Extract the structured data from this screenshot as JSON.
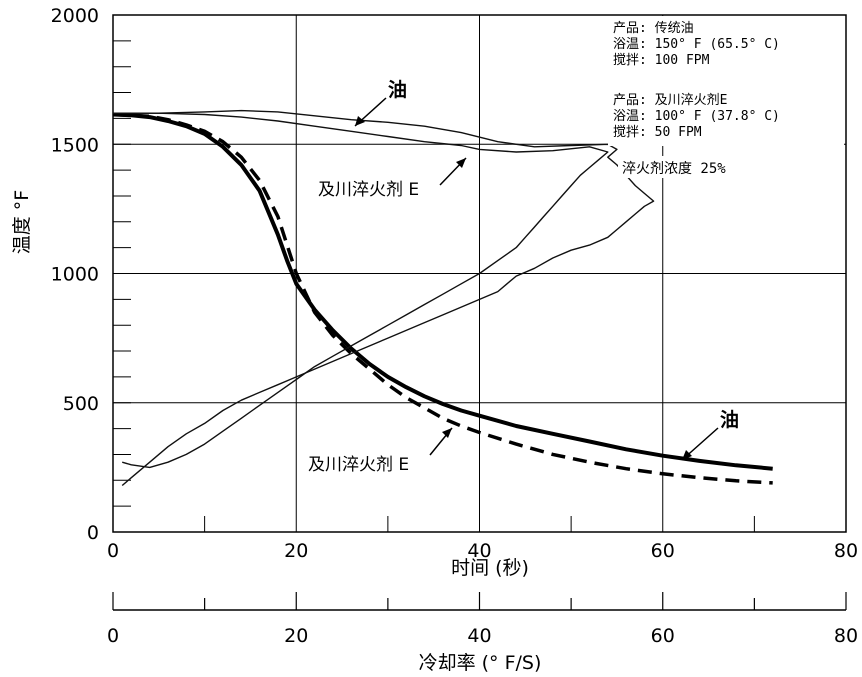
{
  "chart_data": {
    "type": "line",
    "xlabel": "时间 (秒)",
    "ylabel": "温度 °F",
    "xlim": [
      0,
      80
    ],
    "ylim": [
      0,
      2000
    ],
    "x_ticks": [
      "0",
      "20",
      "40",
      "60",
      "80"
    ],
    "y_ticks": [
      "0",
      "500",
      "1000",
      "1500",
      "2000"
    ],
    "grid": true,
    "secondary_axis": {
      "label": "冷却率 (° F/S)",
      "ticks": [
        "0",
        "20",
        "40",
        "60",
        "80"
      ]
    },
    "info_lines": [
      "产品: 传统油",
      "浴温: 150° F (65.5° C)",
      "搅拌: 100 FPM",
      "产品: 及川淬火剂E",
      "浴温: 100° F (37.8° C)",
      "搅拌: 50 FPM"
    ],
    "concentration_label": "淬火剂浓度  25%",
    "annotations": {
      "oil_top": "油",
      "agent_top": "及川淬火剂 E",
      "oil_bottom": "油",
      "agent_bottom": "及川淬火剂 E"
    },
    "series": [
      {
        "key": "oil-time",
        "style": "thick-solid",
        "points": [
          [
            0,
            1615
          ],
          [
            2,
            1612
          ],
          [
            4,
            1605
          ],
          [
            6,
            1590
          ],
          [
            8,
            1570
          ],
          [
            10,
            1540
          ],
          [
            12,
            1490
          ],
          [
            14,
            1420
          ],
          [
            16,
            1320
          ],
          [
            18,
            1150
          ],
          [
            19,
            1050
          ],
          [
            20,
            960
          ],
          [
            22,
            860
          ],
          [
            24,
            780
          ],
          [
            26,
            710
          ],
          [
            28,
            650
          ],
          [
            30,
            600
          ],
          [
            32,
            560
          ],
          [
            34,
            525
          ],
          [
            36,
            495
          ],
          [
            38,
            470
          ],
          [
            40,
            450
          ],
          [
            44,
            410
          ],
          [
            48,
            380
          ],
          [
            52,
            350
          ],
          [
            56,
            320
          ],
          [
            60,
            295
          ],
          [
            64,
            275
          ],
          [
            68,
            258
          ],
          [
            72,
            245
          ]
        ]
      },
      {
        "key": "agent-time",
        "style": "thick-dashed",
        "points": [
          [
            0,
            1615
          ],
          [
            2,
            1612
          ],
          [
            4,
            1608
          ],
          [
            6,
            1595
          ],
          [
            8,
            1575
          ],
          [
            10,
            1550
          ],
          [
            12,
            1510
          ],
          [
            14,
            1450
          ],
          [
            16,
            1360
          ],
          [
            18,
            1220
          ],
          [
            20,
            1000
          ],
          [
            22,
            850
          ],
          [
            24,
            760
          ],
          [
            26,
            690
          ],
          [
            28,
            630
          ],
          [
            30,
            570
          ],
          [
            32,
            520
          ],
          [
            34,
            480
          ],
          [
            36,
            440
          ],
          [
            38,
            410
          ],
          [
            40,
            385
          ],
          [
            44,
            340
          ],
          [
            48,
            300
          ],
          [
            52,
            270
          ],
          [
            56,
            245
          ],
          [
            60,
            225
          ],
          [
            64,
            210
          ],
          [
            68,
            198
          ],
          [
            72,
            190
          ]
        ]
      },
      {
        "key": "oil-rate",
        "style": "thin",
        "points": [
          [
            0,
            1620
          ],
          [
            5,
            1620
          ],
          [
            10,
            1625
          ],
          [
            14,
            1630
          ],
          [
            18,
            1625
          ],
          [
            22,
            1610
          ],
          [
            26,
            1595
          ],
          [
            30,
            1585
          ],
          [
            34,
            1570
          ],
          [
            38,
            1545
          ],
          [
            42,
            1510
          ],
          [
            46,
            1490
          ],
          [
            50,
            1495
          ],
          [
            54,
            1500
          ],
          [
            55,
            1480
          ],
          [
            54,
            1450
          ],
          [
            55,
            1420
          ],
          [
            56,
            1380
          ],
          [
            57,
            1340
          ],
          [
            58,
            1310
          ],
          [
            59,
            1280
          ],
          [
            58,
            1260
          ],
          [
            57,
            1230
          ],
          [
            56,
            1200
          ],
          [
            55,
            1170
          ],
          [
            54,
            1140
          ],
          [
            52,
            1110
          ],
          [
            50,
            1090
          ],
          [
            48,
            1060
          ],
          [
            46,
            1020
          ],
          [
            44,
            990
          ],
          [
            43,
            960
          ],
          [
            42,
            930
          ],
          [
            40,
            900
          ],
          [
            38,
            870
          ],
          [
            36,
            840
          ],
          [
            34,
            810
          ],
          [
            32,
            780
          ],
          [
            30,
            750
          ],
          [
            28,
            720
          ],
          [
            26,
            690
          ],
          [
            24,
            660
          ],
          [
            22,
            630
          ],
          [
            20,
            600
          ],
          [
            18,
            570
          ],
          [
            16,
            540
          ],
          [
            14,
            510
          ],
          [
            12,
            470
          ],
          [
            10,
            420
          ],
          [
            8,
            380
          ],
          [
            6,
            330
          ],
          [
            4,
            270
          ],
          [
            2,
            210
          ],
          [
            1,
            180
          ]
        ]
      },
      {
        "key": "agent-rate",
        "style": "thin",
        "points": [
          [
            0,
            1620
          ],
          [
            5,
            1620
          ],
          [
            10,
            1615
          ],
          [
            14,
            1605
          ],
          [
            18,
            1590
          ],
          [
            22,
            1570
          ],
          [
            26,
            1550
          ],
          [
            30,
            1530
          ],
          [
            34,
            1510
          ],
          [
            38,
            1495
          ],
          [
            40,
            1480
          ],
          [
            44,
            1470
          ],
          [
            48,
            1475
          ],
          [
            52,
            1490
          ],
          [
            54,
            1470
          ],
          [
            53,
            1440
          ],
          [
            52,
            1410
          ],
          [
            51,
            1380
          ],
          [
            50,
            1340
          ],
          [
            49,
            1300
          ],
          [
            48,
            1260
          ],
          [
            47,
            1220
          ],
          [
            46,
            1180
          ],
          [
            45,
            1140
          ],
          [
            44,
            1100
          ],
          [
            42,
            1050
          ],
          [
            40,
            1000
          ],
          [
            38,
            960
          ],
          [
            36,
            920
          ],
          [
            34,
            880
          ],
          [
            32,
            840
          ],
          [
            30,
            800
          ],
          [
            28,
            760
          ],
          [
            26,
            720
          ],
          [
            24,
            680
          ],
          [
            22,
            640
          ],
          [
            20,
            590
          ],
          [
            18,
            540
          ],
          [
            16,
            490
          ],
          [
            14,
            440
          ],
          [
            12,
            390
          ],
          [
            10,
            340
          ],
          [
            8,
            300
          ],
          [
            6,
            270
          ],
          [
            4,
            250
          ],
          [
            2,
            260
          ],
          [
            1,
            270
          ]
        ]
      }
    ]
  }
}
